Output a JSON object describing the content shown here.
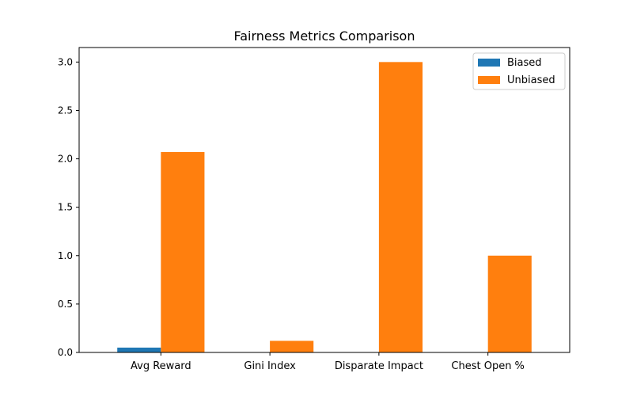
{
  "chart_data": {
    "type": "bar",
    "title": "Fairness Metrics Comparison",
    "xlabel": "",
    "ylabel": "",
    "categories": [
      "Avg Reward",
      "Gini Index",
      "Disparate Impact",
      "Chest Open %"
    ],
    "series": [
      {
        "name": "Biased",
        "color": "#1f77b4",
        "values": [
          0.05,
          0.0,
          0.0,
          0.0
        ]
      },
      {
        "name": "Unbiased",
        "color": "#ff7f0e",
        "values": [
          2.07,
          0.12,
          3.0,
          1.0
        ]
      }
    ],
    "ylim": [
      0,
      3.15
    ],
    "yticks": [
      0.0,
      0.5,
      1.0,
      1.5,
      2.0,
      2.5,
      3.0
    ],
    "ytick_labels": [
      "0.0",
      "0.5",
      "1.0",
      "1.5",
      "2.0",
      "2.5",
      "3.0"
    ],
    "grid": false,
    "legend_position": "top-right"
  }
}
